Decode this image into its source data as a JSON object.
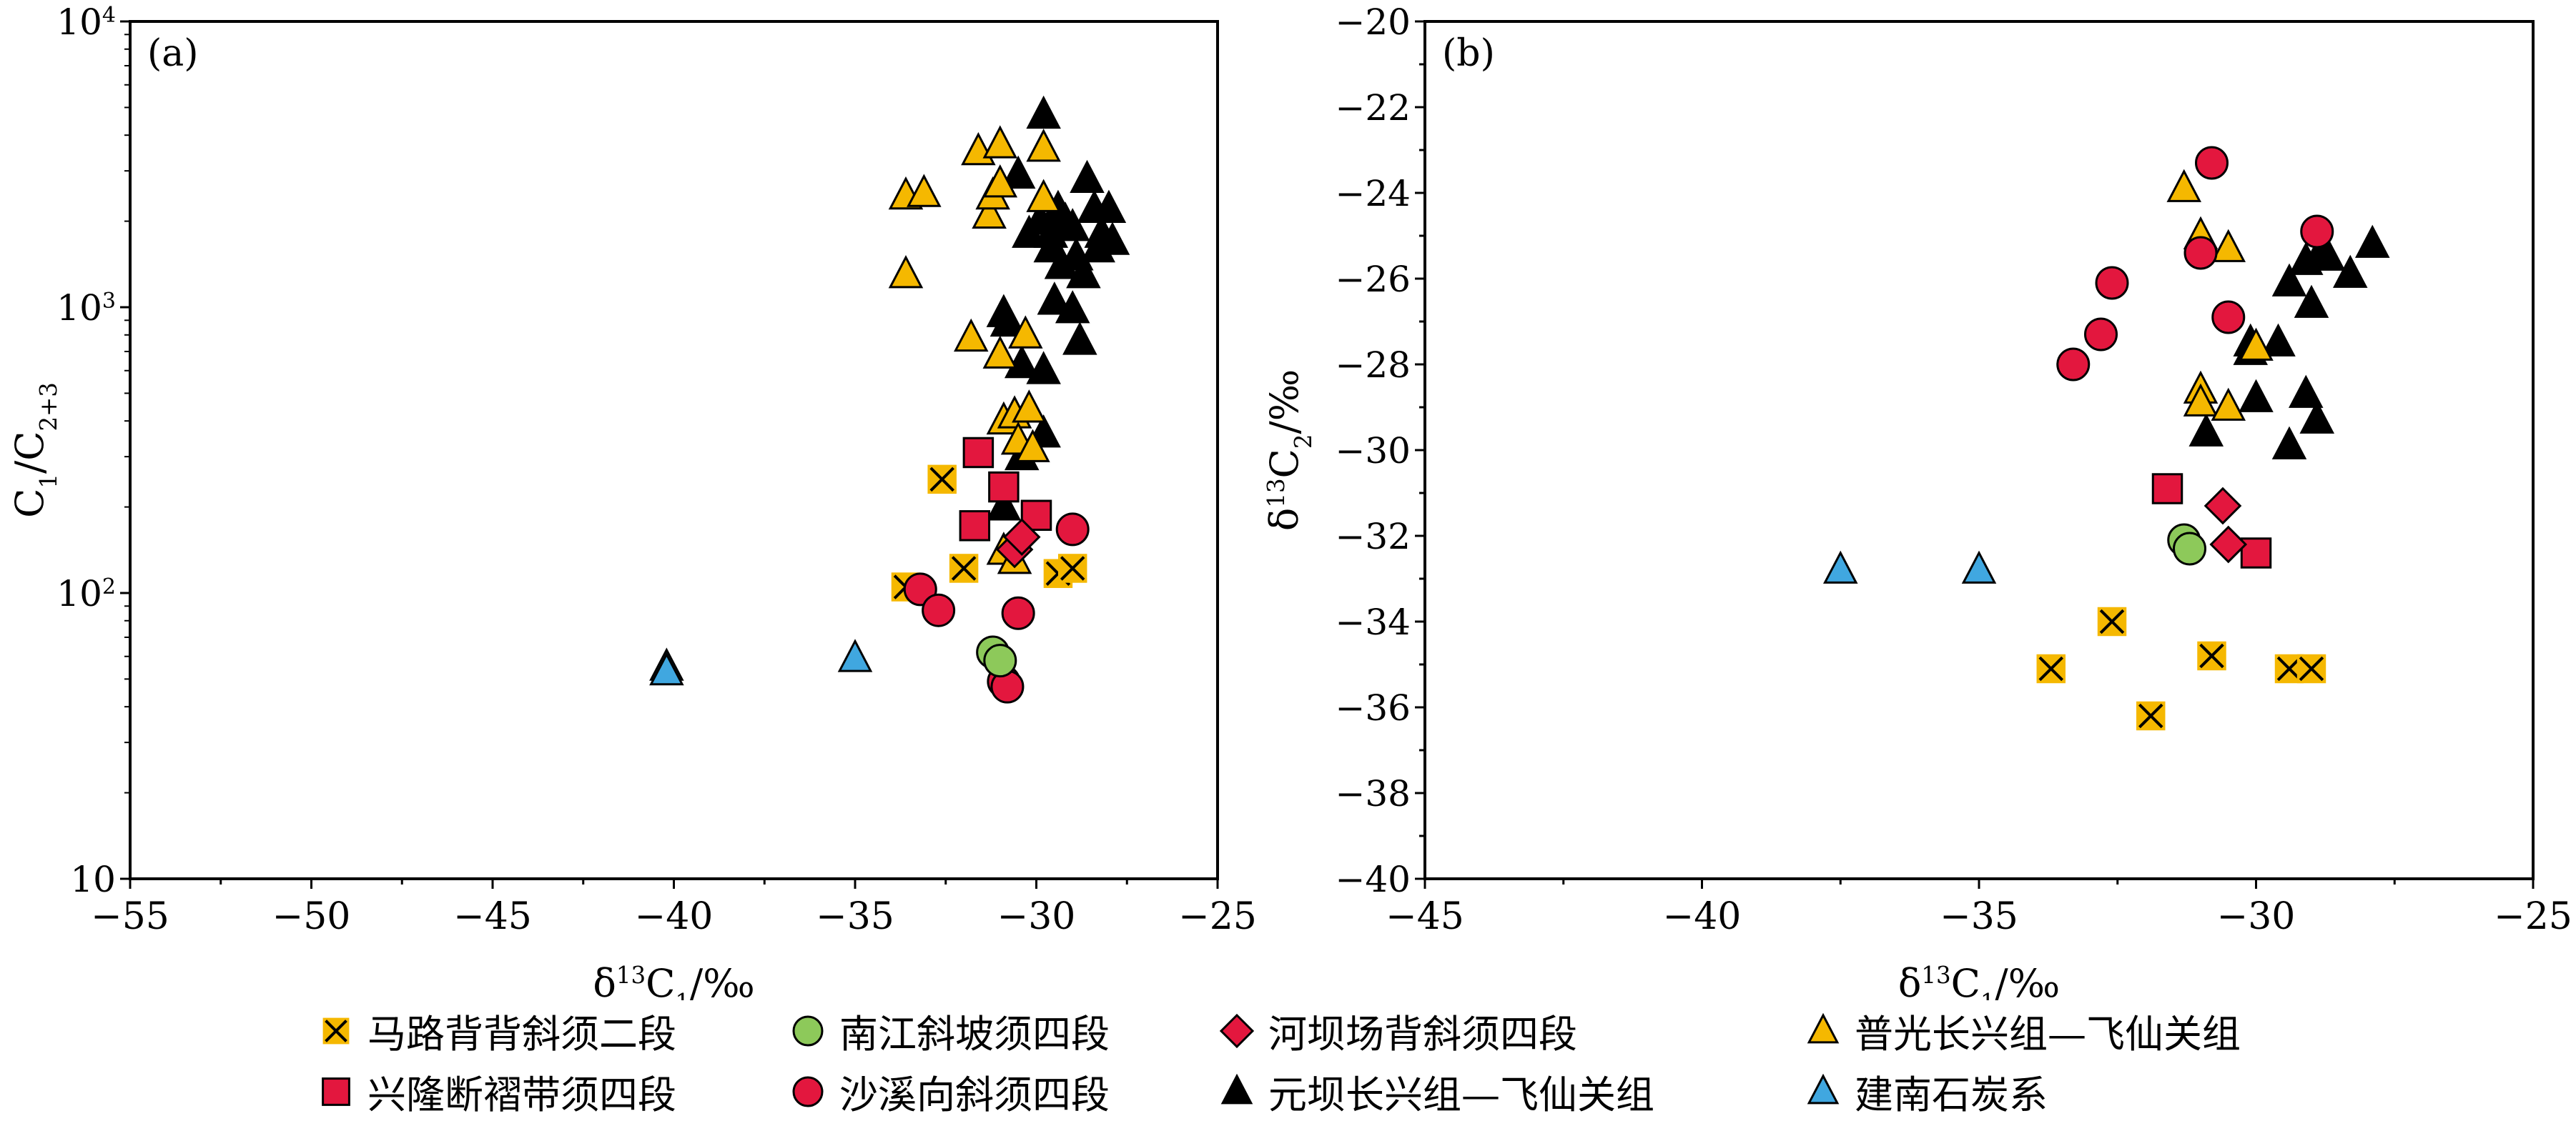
{
  "colors": {
    "yellow": "#F5B800",
    "red": "#E3173E",
    "green": "#8DC95A",
    "blue": "#40A7E0",
    "black": "#000000"
  },
  "legend": [
    {
      "key": "malu",
      "label": "马路背背斜须二段",
      "marker": "xsquare",
      "color": "#F5B800"
    },
    {
      "key": "nanjiang",
      "label": "南江斜坡须四段",
      "marker": "circle",
      "color": "#8DC95A"
    },
    {
      "key": "heba",
      "label": "河坝场背斜须四段",
      "marker": "diamond",
      "color": "#E3173E"
    },
    {
      "key": "puguang",
      "label": "普光长兴组—飞仙关组",
      "marker": "triangle",
      "color": "#F5B800"
    },
    {
      "key": "xinglong",
      "label": "兴隆断褶带须四段",
      "marker": "square",
      "color": "#E3173E"
    },
    {
      "key": "shaxi",
      "label": "沙溪向斜须四段",
      "marker": "circle",
      "color": "#E3173E"
    },
    {
      "key": "yuanba",
      "label": "元坝长兴组—飞仙关组",
      "marker": "triangle",
      "color": "#000000"
    },
    {
      "key": "jiannan",
      "label": "建南石炭系",
      "marker": "triangle",
      "color": "#40A7E0"
    }
  ],
  "chart_data": [
    {
      "type": "scatter",
      "panel_label": "(a)",
      "xlabel": "δ13C1/‰",
      "ylabel": "C1/C2+3",
      "xlim": [
        -55,
        -25
      ],
      "ylim": [
        10,
        10000
      ],
      "yscale": "log",
      "xticks": [
        "−55",
        "−50",
        "−45",
        "−40",
        "−35",
        "−30",
        "−25"
      ],
      "yticks": [
        "10",
        "10^2",
        "10^3",
        "10^4"
      ],
      "series": [
        {
          "key": "malu",
          "points": [
            [
              -33.6,
              105
            ],
            [
              -32.6,
              250
            ],
            [
              -32.0,
              122
            ],
            [
              -29.4,
              117
            ],
            [
              -29.0,
              122
            ]
          ]
        },
        {
          "key": "nanjiang",
          "points": [
            [
              -31.2,
              62
            ],
            [
              -31.0,
              58
            ]
          ]
        },
        {
          "key": "heba",
          "points": [
            [
              -30.6,
              142
            ],
            [
              -30.4,
              157
            ]
          ]
        },
        {
          "key": "puguang",
          "points": [
            [
              -33.6,
              2450
            ],
            [
              -33.1,
              2500
            ],
            [
              -33.6,
              1300
            ],
            [
              -31.6,
              3500
            ],
            [
              -31.0,
              3700
            ],
            [
              -29.8,
              3600
            ],
            [
              -31.3,
              2100
            ],
            [
              -31.2,
              2450
            ],
            [
              -31.0,
              2700
            ],
            [
              -29.8,
              2400
            ],
            [
              -31.8,
              780
            ],
            [
              -31.0,
              680
            ],
            [
              -30.3,
              800
            ],
            [
              -30.9,
              400
            ],
            [
              -30.6,
              420
            ],
            [
              -30.2,
              440
            ],
            [
              -30.5,
              340
            ],
            [
              -30.1,
              320
            ],
            [
              -30.9,
              140
            ],
            [
              -30.6,
              130
            ]
          ]
        },
        {
          "key": "xinglong",
          "points": [
            [
              -31.6,
              310
            ],
            [
              -30.9,
              235
            ],
            [
              -31.7,
              172
            ],
            [
              -30.0,
              187
            ]
          ]
        },
        {
          "key": "shaxi",
          "points": [
            [
              -33.2,
              103
            ],
            [
              -32.7,
              87
            ],
            [
              -30.5,
              85
            ],
            [
              -29.0,
              167
            ],
            [
              -30.9,
              49
            ],
            [
              -30.8,
              47
            ]
          ]
        },
        {
          "key": "yuanba",
          "points": [
            [
              -29.8,
              4700
            ],
            [
              -30.5,
              2900
            ],
            [
              -30.2,
              1800
            ],
            [
              -29.9,
              2000
            ],
            [
              -29.6,
              1800
            ],
            [
              -29.4,
              2200
            ],
            [
              -29.2,
              2000
            ],
            [
              -29.0,
              1900
            ],
            [
              -28.6,
              2800
            ],
            [
              -28.4,
              2200
            ],
            [
              -28.2,
              1800
            ],
            [
              -28.0,
              2200
            ],
            [
              -29.6,
              1600
            ],
            [
              -29.3,
              1400
            ],
            [
              -28.9,
              1500
            ],
            [
              -28.3,
              1600
            ],
            [
              -27.9,
              1700
            ],
            [
              -28.7,
              1300
            ],
            [
              -29.5,
              1050
            ],
            [
              -29.0,
              980
            ],
            [
              -30.9,
              950
            ],
            [
              -30.8,
              880
            ],
            [
              -28.8,
              760
            ],
            [
              -30.4,
              630
            ],
            [
              -29.8,
              600
            ],
            [
              -29.8,
              360
            ],
            [
              -30.4,
              300
            ],
            [
              -30.9,
              200
            ]
          ]
        },
        {
          "key": "jiannan",
          "points": [
            [
              -40.2,
              55
            ],
            [
              -40.2,
              53
            ],
            [
              -35.0,
              59
            ]
          ]
        }
      ]
    },
    {
      "type": "scatter",
      "panel_label": "(b)",
      "xlabel": "δ13C1/‰",
      "ylabel": "δ13C2/‰",
      "xlim": [
        -45,
        -25
      ],
      "ylim": [
        -40,
        -20
      ],
      "xticks": [
        "−45",
        "−40",
        "−35",
        "−30",
        "−25"
      ],
      "yticks": [
        "−40",
        "−38",
        "−36",
        "−34",
        "−32",
        "−30",
        "−28",
        "−26",
        "−24",
        "−22",
        "−20"
      ],
      "series": [
        {
          "key": "malu",
          "points": [
            [
              -33.7,
              -35.1
            ],
            [
              -32.6,
              -34.0
            ],
            [
              -31.9,
              -36.2
            ],
            [
              -30.8,
              -34.8
            ],
            [
              -29.4,
              -35.1
            ],
            [
              -29.0,
              -35.1
            ]
          ]
        },
        {
          "key": "nanjiang",
          "points": [
            [
              -31.3,
              -32.1
            ],
            [
              -31.2,
              -32.3
            ]
          ]
        },
        {
          "key": "heba",
          "points": [
            [
              -30.6,
              -31.3
            ],
            [
              -30.5,
              -32.2
            ]
          ]
        },
        {
          "key": "puguang",
          "points": [
            [
              -31.3,
              -23.9
            ],
            [
              -31.0,
              -25.0
            ],
            [
              -30.5,
              -25.3
            ],
            [
              -30.0,
              -27.6
            ],
            [
              -31.0,
              -28.6
            ],
            [
              -31.0,
              -28.9
            ],
            [
              -30.5,
              -29.0
            ]
          ]
        },
        {
          "key": "xinglong",
          "points": [
            [
              -31.6,
              -30.9
            ],
            [
              -30.0,
              -32.4
            ]
          ]
        },
        {
          "key": "shaxi",
          "points": [
            [
              -30.8,
              -23.3
            ],
            [
              -28.9,
              -24.9
            ],
            [
              -31.0,
              -25.4
            ],
            [
              -32.6,
              -26.1
            ],
            [
              -30.5,
              -26.9
            ],
            [
              -32.8,
              -27.3
            ],
            [
              -33.3,
              -28.0
            ]
          ]
        },
        {
          "key": "yuanba",
          "points": [
            [
              -29.4,
              -26.1
            ],
            [
              -29.1,
              -25.6
            ],
            [
              -28.8,
              -25.3
            ],
            [
              -28.7,
              -25.5
            ],
            [
              -28.3,
              -25.9
            ],
            [
              -27.9,
              -25.2
            ],
            [
              -29.0,
              -26.6
            ],
            [
              -29.6,
              -27.5
            ],
            [
              -30.1,
              -27.7
            ],
            [
              -30.1,
              -27.5
            ],
            [
              -30.0,
              -28.8
            ],
            [
              -29.1,
              -28.7
            ],
            [
              -30.9,
              -29.6
            ],
            [
              -29.4,
              -29.9
            ],
            [
              -28.9,
              -29.3
            ]
          ]
        },
        {
          "key": "jiannan",
          "points": [
            [
              -37.5,
              -32.8
            ],
            [
              -35.0,
              -32.8
            ]
          ]
        }
      ]
    }
  ]
}
